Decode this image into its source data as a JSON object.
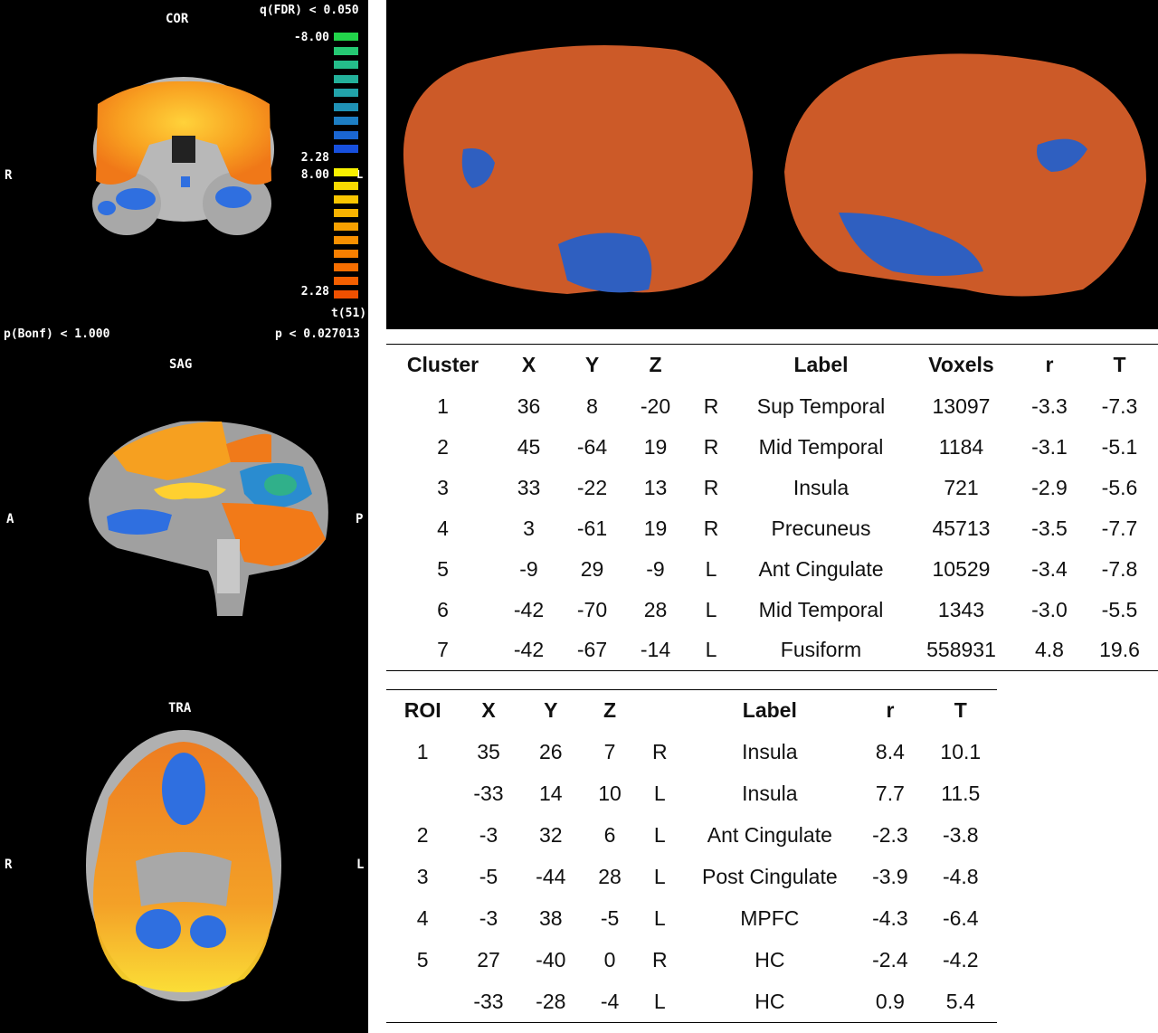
{
  "panels": {
    "cor": {
      "title": "COR",
      "left_label": "R",
      "top_right": "q(FDR) < 0.050",
      "bottom_left": "p(Bonf) < 1.000",
      "bottom_right": "p < 0.027013"
    },
    "sag": {
      "title": "SAG",
      "left_label": "A",
      "right_label": "P"
    },
    "tra": {
      "title": "TRA",
      "left_label": "R",
      "right_label": "L"
    }
  },
  "colorbar": {
    "neg_max": "-8.00",
    "neg_min": "2.28",
    "pos_max": "8.00",
    "pos_marker": "L",
    "pos_min": "2.28",
    "stat": "t(51)",
    "neg_colors": [
      "#22d44a",
      "#25c873",
      "#24bd8a",
      "#23b19b",
      "#22a3aa",
      "#1f92b6",
      "#1d7ec4",
      "#1a66d2",
      "#1750de"
    ],
    "pos_colors": [
      "#f8f000",
      "#f8da00",
      "#f8c500",
      "#f8b300",
      "#f8a100",
      "#f89000",
      "#f87f00",
      "#f76e00",
      "#f45f00",
      "#f05000"
    ]
  },
  "table1": {
    "headers": [
      "Cluster",
      "X",
      "Y",
      "Z",
      "",
      "Label",
      "Voxels",
      "r",
      "T"
    ],
    "rows": [
      [
        "1",
        "36",
        "8",
        "-20",
        "R",
        "Sup Temporal",
        "13097",
        "-3.3",
        "-7.3"
      ],
      [
        "2",
        "45",
        "-64",
        "19",
        "R",
        "Mid Temporal",
        "1184",
        "-3.1",
        "-5.1"
      ],
      [
        "3",
        "33",
        "-22",
        "13",
        "R",
        "Insula",
        "721",
        "-2.9",
        "-5.6"
      ],
      [
        "4",
        "3",
        "-61",
        "19",
        "R",
        "Precuneus",
        "45713",
        "-3.5",
        "-7.7"
      ],
      [
        "5",
        "-9",
        "29",
        "-9",
        "L",
        "Ant Cingulate",
        "10529",
        "-3.4",
        "-7.8"
      ],
      [
        "6",
        "-42",
        "-70",
        "28",
        "L",
        "Mid Temporal",
        "1343",
        "-3.0",
        "-5.5"
      ],
      [
        "7",
        "-42",
        "-67",
        "-14",
        "L",
        "Fusiform",
        "558931",
        "4.8",
        "19.6"
      ]
    ]
  },
  "table2": {
    "headers": [
      "ROI",
      "X",
      "Y",
      "Z",
      "",
      "Label",
      "r",
      "T"
    ],
    "rows": [
      [
        "1",
        "35",
        "26",
        "7",
        "R",
        "Insula",
        "8.4",
        "10.1"
      ],
      [
        "",
        "-33",
        "14",
        "10",
        "L",
        "Insula",
        "7.7",
        "11.5"
      ],
      [
        "2",
        "-3",
        "32",
        "6",
        "L",
        "Ant Cingulate",
        "-2.3",
        "-3.8"
      ],
      [
        "3",
        "-5",
        "-44",
        "28",
        "L",
        "Post Cingulate",
        "-3.9",
        "-4.8"
      ],
      [
        "4",
        "-3",
        "38",
        "-5",
        "L",
        "MPFC",
        "-4.3",
        "-6.4"
      ],
      [
        "5",
        "27",
        "-40",
        "0",
        "R",
        "HC",
        "-2.4",
        "-4.2"
      ],
      [
        "",
        "-33",
        "-28",
        "-4",
        "L",
        "HC",
        "0.9",
        "5.4"
      ]
    ]
  }
}
